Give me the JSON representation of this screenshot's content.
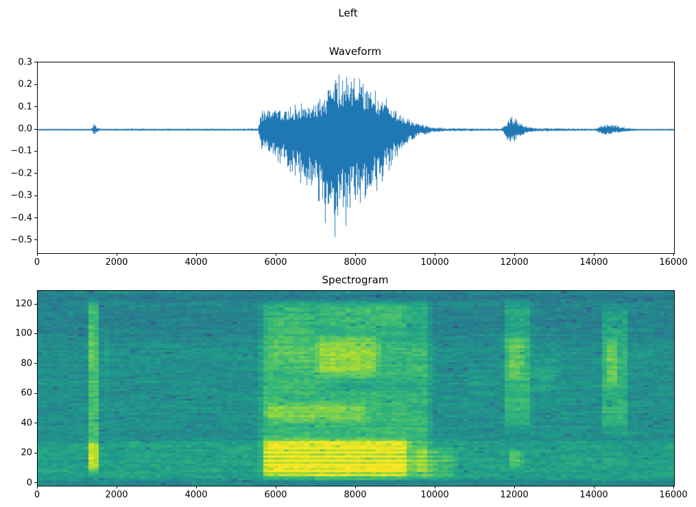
{
  "figure": {
    "suptitle": "Left",
    "background_color": "#ffffff",
    "text_color": "#000000"
  },
  "waveform_axes": {
    "title": "Waveform",
    "ytick_labels": [
      "0.3",
      "0.2",
      "0.1",
      "0.0",
      "−0.1",
      "−0.2",
      "−0.3",
      "−0.4",
      "−0.5"
    ],
    "xtick_labels": [
      "0",
      "2000",
      "4000",
      "6000",
      "8000",
      "10000",
      "12000",
      "14000",
      "16000"
    ]
  },
  "spectrogram_axes": {
    "title": "Spectrogram",
    "ytick_labels": [
      "0",
      "20",
      "40",
      "60",
      "80",
      "100",
      "120"
    ],
    "xtick_labels": [
      "0",
      "2000",
      "4000",
      "6000",
      "8000",
      "10000",
      "12000",
      "14000",
      "16000"
    ]
  },
  "chart_data": [
    {
      "type": "line",
      "title": "Waveform",
      "description": "Audio waveform, left channel: amplitude vs sample index. Near-silence except: tiny click near sample 1430 (±0.03), main speech burst samples 5600-10200 (peak +0.27 near 7600, peak -0.52 near 7450), small burst 11750-12300 (±0.07), small burst 14150-14750 (±0.03).",
      "line_color": "#1f77b4",
      "x_range": [
        0,
        16000
      ],
      "ylim": [
        -0.556,
        0.303
      ],
      "xticks": [
        0,
        2000,
        4000,
        6000,
        8000,
        10000,
        12000,
        14000,
        16000
      ],
      "yticks": [
        0.3,
        0.2,
        0.1,
        0.0,
        -0.1,
        -0.2,
        -0.3,
        -0.4,
        -0.5
      ],
      "grid": false,
      "legend": false,
      "envelope_points_x_pos_neg": [
        [
          0,
          0.004,
          0.004
        ],
        [
          1340,
          0.004,
          0.004
        ],
        [
          1395,
          0.02,
          0.014
        ],
        [
          1430,
          0.034,
          0.032
        ],
        [
          1475,
          0.014,
          0.016
        ],
        [
          1560,
          0.005,
          0.005
        ],
        [
          5540,
          0.005,
          0.005
        ],
        [
          5610,
          0.085,
          0.09
        ],
        [
          5900,
          0.1,
          0.13
        ],
        [
          6200,
          0.1,
          0.17
        ],
        [
          6600,
          0.12,
          0.24
        ],
        [
          7000,
          0.13,
          0.32
        ],
        [
          7250,
          0.17,
          0.44
        ],
        [
          7450,
          0.21,
          0.52
        ],
        [
          7600,
          0.27,
          0.48
        ],
        [
          7800,
          0.24,
          0.42
        ],
        [
          8100,
          0.24,
          0.38
        ],
        [
          8400,
          0.2,
          0.31
        ],
        [
          8700,
          0.15,
          0.23
        ],
        [
          9000,
          0.1,
          0.14
        ],
        [
          9300,
          0.055,
          0.065
        ],
        [
          9600,
          0.028,
          0.032
        ],
        [
          9900,
          0.013,
          0.013
        ],
        [
          10250,
          0.007,
          0.007
        ],
        [
          11650,
          0.005,
          0.005
        ],
        [
          11760,
          0.028,
          0.03
        ],
        [
          11900,
          0.062,
          0.075
        ],
        [
          12060,
          0.045,
          0.04
        ],
        [
          12250,
          0.018,
          0.018
        ],
        [
          12550,
          0.008,
          0.008
        ],
        [
          14020,
          0.005,
          0.005
        ],
        [
          14160,
          0.02,
          0.018
        ],
        [
          14320,
          0.028,
          0.026
        ],
        [
          14560,
          0.02,
          0.018
        ],
        [
          14780,
          0.009,
          0.009
        ],
        [
          15150,
          0.004,
          0.004
        ],
        [
          16000,
          0.004,
          0.004
        ]
      ]
    },
    {
      "type": "heatmap",
      "title": "Spectrogram",
      "description": "Spectrogram (viridis) of the same signal: frequency bin vs sample index. Bright vertical event near 1400, strong broadband energy 5600-10000 (brightest yellow below bin 32), events near 11700-12500 and 14100-14900 concentrated in bins 30-125, dark band at top bins >122.",
      "colormap": "viridis",
      "x_range": [
        0,
        16000
      ],
      "ylim": [
        -1.4,
        129.2
      ],
      "xticks": [
        0,
        2000,
        4000,
        6000,
        8000,
        10000,
        12000,
        14000,
        16000
      ],
      "yticks": [
        0,
        20,
        40,
        60,
        80,
        100,
        120
      ],
      "grid_cells": {
        "cols": 124,
        "rows": 96
      },
      "background_level": 0.5,
      "noise_amplitude": 0.045,
      "streak_amplitude": 0.07,
      "dark_speck_chance": 0.015,
      "energy_regions": [
        {
          "x": [
            0,
            16000
          ],
          "y": [
            2,
            30
          ],
          "v": 0.07,
          "sx": 1,
          "sy": 3
        },
        {
          "x": [
            0,
            16000
          ],
          "y": [
            90,
            129
          ],
          "v": -0.09,
          "sx": 1,
          "sy": 25
        },
        {
          "x": [
            0,
            16000
          ],
          "y": [
            121,
            129
          ],
          "v": -0.09,
          "sx": 1,
          "sy": 3
        },
        {
          "x": [
            0,
            16000
          ],
          "y": [
            0,
            2.5
          ],
          "v": -0.07,
          "sx": 1,
          "sy": 1
        },
        {
          "x": [
            1230,
            1580
          ],
          "y": [
            4,
            127
          ],
          "v": 0.2,
          "sx": 80,
          "sy": 8
        },
        {
          "x": [
            1270,
            1530
          ],
          "y": [
            7,
            30
          ],
          "v": 0.16,
          "sx": 80,
          "sy": 6
        },
        {
          "x": [
            1290,
            1520
          ],
          "y": [
            72,
            118
          ],
          "v": 0.08,
          "sx": 80,
          "sy": 10
        },
        {
          "x": [
            1600,
            1820
          ],
          "y": [
            55,
            115
          ],
          "v": 0.05,
          "sx": 70,
          "sy": 12
        },
        {
          "x": [
            5550,
            9950
          ],
          "y": [
            2,
            126
          ],
          "v": 0.16,
          "sx": 180,
          "sy": 8
        },
        {
          "x": [
            5600,
            9400
          ],
          "y": [
            2,
            32
          ],
          "v": 0.26,
          "sx": 200,
          "sy": 5,
          "stripe": 0.5
        },
        {
          "x": [
            9300,
            10650
          ],
          "y": [
            2,
            26
          ],
          "v": 0.12,
          "sx": 350,
          "sy": 5,
          "stripe": 0.4
        },
        {
          "x": [
            5650,
            8400
          ],
          "y": [
            40,
            56
          ],
          "v": 0.14,
          "sx": 250,
          "sy": 5
        },
        {
          "x": [
            6850,
            8700
          ],
          "y": [
            70,
            102
          ],
          "v": 0.18,
          "sx": 300,
          "sy": 8
        },
        {
          "x": [
            5700,
            7000
          ],
          "y": [
            74,
            122
          ],
          "v": 0.08,
          "sx": 250,
          "sy": 10
        },
        {
          "x": [
            6900,
            9400
          ],
          "y": [
            102,
            123
          ],
          "v": 0.08,
          "sx": 300,
          "sy": 6
        },
        {
          "x": [
            7200,
            9950
          ],
          "y": [
            60,
            72
          ],
          "v": -0.07,
          "sx": 400,
          "sy": 5
        },
        {
          "x": [
            10650,
            11650
          ],
          "y": [
            55,
            80
          ],
          "v": 0.035,
          "sx": 300,
          "sy": 10
        },
        {
          "x": [
            11700,
            12470
          ],
          "y": [
            34,
            126
          ],
          "v": 0.15,
          "sx": 90,
          "sy": 10
        },
        {
          "x": [
            11780,
            12260
          ],
          "y": [
            68,
            102
          ],
          "v": 0.12,
          "sx": 100,
          "sy": 8
        },
        {
          "x": [
            11850,
            12230
          ],
          "y": [
            10,
            24
          ],
          "v": 0.16,
          "sx": 80,
          "sy": 4
        },
        {
          "x": [
            12400,
            13150
          ],
          "y": [
            56,
            86
          ],
          "v": 0.07,
          "sx": 250,
          "sy": 8
        },
        {
          "x": [
            14130,
            14880
          ],
          "y": [
            30,
            122
          ],
          "v": 0.14,
          "sx": 110,
          "sy": 10
        },
        {
          "x": [
            14250,
            14620
          ],
          "y": [
            62,
            100
          ],
          "v": 0.12,
          "sx": 100,
          "sy": 8
        }
      ]
    }
  ]
}
